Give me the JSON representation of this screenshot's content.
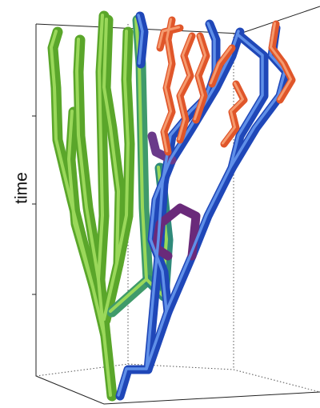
{
  "axis_label": "time"
}
